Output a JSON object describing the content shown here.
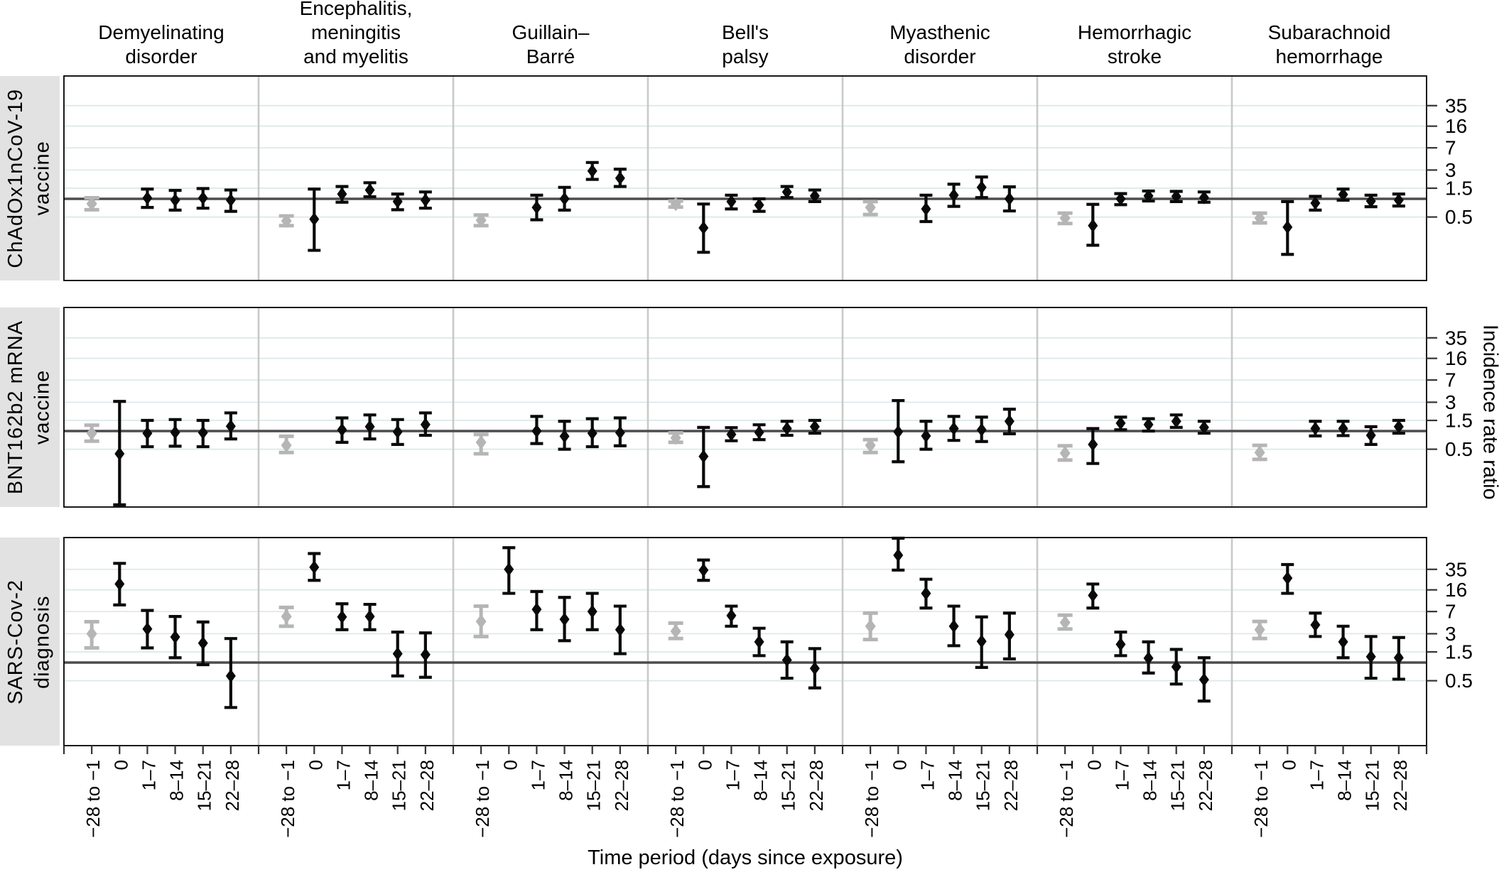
{
  "chart_data": {
    "type": "scatter",
    "subtype": "faceted-forest-plot-with-error-bars",
    "log_scale_y": true,
    "title": "",
    "xlabel": "Time period (days since exposure)",
    "ylabel": "Incidence rate ratio",
    "x_categories": [
      "−28 to −1",
      "0",
      "1–7",
      "8–14",
      "15–21",
      "22–28"
    ],
    "y_ticks": [
      35,
      16,
      7,
      3,
      1.5,
      0.5
    ],
    "reference_line": 1,
    "legend_position": "none",
    "grid": "horizontal-only",
    "colors": {
      "point": "#0a0a0a",
      "baseline_point": "#b5b5b5",
      "reference_line": "#4d4d4d",
      "gridline": "#dbe8ea",
      "panel_separator": "#c9c9c9",
      "frame": "#000000",
      "row_label_bg": "#e2e2e2"
    },
    "columns": [
      "Demyelinating\ndisorder",
      "Encephalitis,\nmeningitis\nand myelitis",
      "Guillain–\nBarré",
      "Bell's\npalsy",
      "Myasthenic\ndisorder",
      "Hemorrhagic\nstroke",
      "Subarachnoid\nhemorrhage"
    ],
    "note": "values are [IRR, CI_low, CI_high]; null = no estimate shown; first time period (−28 to −1) is the gray baseline point",
    "rows": [
      {
        "label": "ChAdOx1nCoV-19\nvaccine",
        "values": [
          [
            [
              0.83,
              0.66,
              1.04
            ],
            null,
            [
              1.03,
              0.72,
              1.45
            ],
            [
              0.95,
              0.65,
              1.38
            ],
            [
              1.03,
              0.7,
              1.48
            ],
            [
              0.95,
              0.62,
              1.4
            ]
          ],
          [
            [
              0.43,
              0.36,
              0.52
            ],
            [
              0.46,
              0.14,
              1.45
            ],
            [
              1.2,
              0.88,
              1.6
            ],
            [
              1.4,
              1.08,
              1.85
            ],
            [
              0.9,
              0.66,
              1.2
            ],
            [
              0.95,
              0.7,
              1.3
            ]
          ],
          [
            [
              0.44,
              0.36,
              0.54
            ],
            null,
            [
              0.72,
              0.45,
              1.15
            ],
            [
              1.0,
              0.65,
              1.55
            ],
            [
              2.9,
              2.1,
              4.0
            ],
            [
              2.2,
              1.6,
              3.1
            ]
          ],
          [
            [
              0.82,
              0.73,
              0.92
            ],
            [
              0.33,
              0.13,
              0.82
            ],
            [
              0.9,
              0.68,
              1.15
            ],
            [
              0.79,
              0.62,
              1.0
            ],
            [
              1.3,
              1.05,
              1.6
            ],
            [
              1.12,
              0.9,
              1.4
            ]
          ],
          [
            [
              0.72,
              0.55,
              0.9
            ],
            null,
            [
              0.68,
              0.42,
              1.15
            ],
            [
              1.15,
              0.75,
              1.75
            ],
            [
              1.55,
              1.05,
              2.3
            ],
            [
              1.0,
              0.63,
              1.58
            ]
          ],
          [
            [
              0.48,
              0.39,
              0.58
            ],
            [
              0.36,
              0.17,
              0.81
            ],
            [
              1.0,
              0.8,
              1.22
            ],
            [
              1.12,
              0.92,
              1.35
            ],
            [
              1.1,
              0.9,
              1.33
            ],
            [
              1.05,
              0.88,
              1.3
            ]
          ],
          [
            [
              0.48,
              0.4,
              0.58
            ],
            [
              0.34,
              0.12,
              0.9
            ],
            [
              0.85,
              0.65,
              1.1
            ],
            [
              1.18,
              0.95,
              1.45
            ],
            [
              0.92,
              0.74,
              1.15
            ],
            [
              0.95,
              0.76,
              1.2
            ]
          ]
        ]
      },
      {
        "label": "BNT162b2 mRNA\nvaccine",
        "values": [
          [
            [
              0.92,
              0.68,
              1.25
            ],
            [
              0.42,
              0.06,
              3.1
            ],
            [
              0.92,
              0.55,
              1.5
            ],
            [
              0.95,
              0.56,
              1.55
            ],
            [
              0.94,
              0.55,
              1.5
            ],
            [
              1.2,
              0.74,
              2.0
            ]
          ],
          [
            [
              0.58,
              0.44,
              0.82
            ],
            null,
            [
              1.05,
              0.65,
              1.65
            ],
            [
              1.18,
              0.74,
              1.85
            ],
            [
              0.97,
              0.6,
              1.55
            ],
            [
              1.28,
              0.85,
              2.0
            ]
          ],
          [
            [
              0.65,
              0.42,
              0.88
            ],
            null,
            [
              1.0,
              0.62,
              1.75
            ],
            [
              0.82,
              0.5,
              1.45
            ],
            [
              0.92,
              0.55,
              1.6
            ],
            [
              0.94,
              0.57,
              1.65
            ]
          ],
          [
            [
              0.77,
              0.65,
              0.93
            ],
            [
              0.38,
              0.12,
              1.15
            ],
            [
              0.88,
              0.69,
              1.14
            ],
            [
              0.95,
              0.72,
              1.27
            ],
            [
              1.1,
              0.85,
              1.45
            ],
            [
              1.18,
              0.92,
              1.5
            ]
          ],
          [
            [
              0.58,
              0.44,
              0.72
            ],
            [
              0.97,
              0.31,
              3.2
            ],
            [
              0.83,
              0.5,
              1.45
            ],
            [
              1.1,
              0.7,
              1.75
            ],
            [
              1.05,
              0.67,
              1.7
            ],
            [
              1.45,
              0.9,
              2.3
            ]
          ],
          [
            [
              0.43,
              0.33,
              0.57
            ],
            [
              0.6,
              0.29,
              1.1
            ],
            [
              1.35,
              1.05,
              1.7
            ],
            [
              1.28,
              1.0,
              1.6
            ],
            [
              1.45,
              1.15,
              1.85
            ],
            [
              1.15,
              0.92,
              1.45
            ]
          ],
          [
            [
              0.44,
              0.34,
              0.58
            ],
            null,
            [
              1.1,
              0.83,
              1.45
            ],
            [
              1.1,
              0.84,
              1.45
            ],
            [
              0.85,
              0.6,
              1.18
            ],
            [
              1.18,
              0.92,
              1.5
            ]
          ]
        ]
      },
      {
        "label": "SARS-Cov-2\ndiagnosis",
        "values": [
          [
            [
              3.0,
              1.75,
              4.75
            ],
            [
              20,
              9,
              44
            ],
            [
              3.6,
              1.75,
              7.3
            ],
            [
              2.65,
              1.2,
              5.8
            ],
            [
              2.1,
              0.92,
              4.7
            ],
            [
              0.6,
              0.18,
              2.5
            ]
          ],
          [
            [
              5.8,
              4.0,
              8.2
            ],
            [
              38,
              23,
              64
            ],
            [
              5.7,
              3.5,
              9.4
            ],
            [
              5.8,
              3.5,
              9.2
            ],
            [
              1.4,
              0.6,
              3.2
            ],
            [
              1.35,
              0.57,
              3.1
            ]
          ],
          [
            [
              4.8,
              2.7,
              8.6
            ],
            [
              35,
              14,
              80
            ],
            [
              7.6,
              3.5,
              15.0
            ],
            [
              5.2,
              2.3,
              12.0
            ],
            [
              7.0,
              3.5,
              14.0
            ],
            [
              3.5,
              1.4,
              8.6
            ]
          ],
          [
            [
              3.3,
              2.5,
              4.5
            ],
            [
              34,
              23,
              50
            ],
            [
              6.0,
              4.0,
              8.6
            ],
            [
              2.2,
              1.3,
              3.7
            ],
            [
              1.1,
              0.55,
              2.2
            ],
            [
              0.8,
              0.38,
              1.7
            ]
          ],
          [
            [
              4.0,
              2.4,
              6.6
            ],
            [
              60,
              34,
              115
            ],
            [
              14,
              8,
              24
            ],
            [
              4.0,
              1.9,
              8.6
            ],
            [
              2.25,
              0.83,
              5.7
            ],
            [
              2.9,
              1.15,
              6.6
            ]
          ],
          [
            [
              4.6,
              3.6,
              6.1
            ],
            [
              13,
              8,
              20
            ],
            [
              2.0,
              1.3,
              3.2
            ],
            [
              1.18,
              0.67,
              2.2
            ],
            [
              0.85,
              0.44,
              1.65
            ],
            [
              0.52,
              0.23,
              1.2
            ]
          ],
          [
            [
              3.5,
              2.5,
              4.8
            ],
            [
              25,
              14,
              42
            ],
            [
              4.2,
              2.7,
              6.6
            ],
            [
              2.2,
              1.2,
              4.0
            ],
            [
              1.25,
              0.55,
              2.7
            ],
            [
              1.2,
              0.53,
              2.6
            ]
          ]
        ]
      }
    ]
  }
}
